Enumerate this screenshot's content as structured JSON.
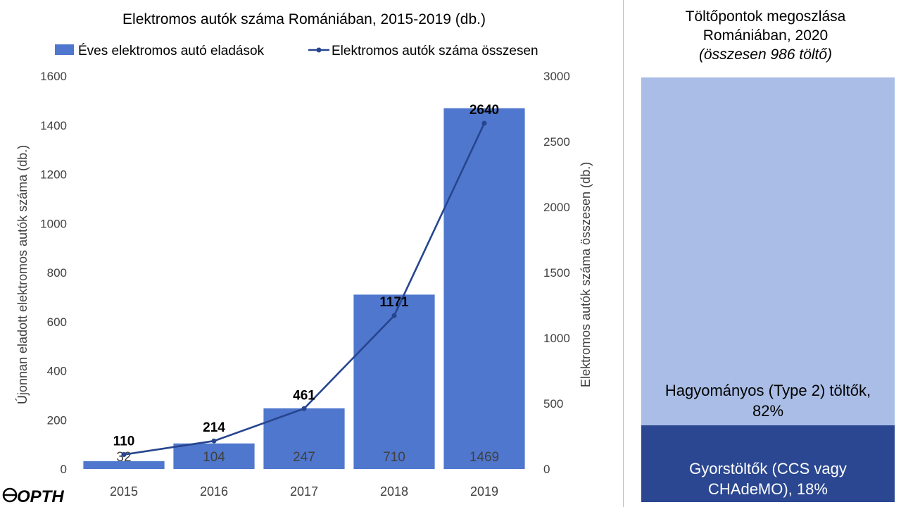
{
  "chart_data": [
    {
      "type": "bar",
      "title": "Elektromos autók száma Romániában, 2015-2019 (db.)",
      "categories": [
        "2015",
        "2016",
        "2017",
        "2018",
        "2019"
      ],
      "ylabel": "Újonnan eladott elektromos autók száma (db.)",
      "y2label": "Elektromos autók száma összesen (db.)",
      "ylim": [
        0,
        1600
      ],
      "y2lim": [
        0,
        3000
      ],
      "yticks": [
        0,
        200,
        400,
        600,
        800,
        1000,
        1200,
        1400,
        1600
      ],
      "y2ticks": [
        0,
        500,
        1000,
        1500,
        2000,
        2500,
        3000
      ],
      "grid": false,
      "legend_position": "top",
      "series": [
        {
          "name": "Éves elektromos autó eladások",
          "type": "bar",
          "axis": "left",
          "color": "#4f77cd",
          "values": [
            32,
            104,
            247,
            710,
            1469
          ]
        },
        {
          "name": "Elektromos autók száma összesen",
          "type": "line",
          "axis": "right",
          "color": "#27458f",
          "values": [
            110,
            214,
            461,
            1171,
            2640
          ]
        }
      ]
    },
    {
      "type": "bar",
      "stacked": true,
      "title_lines": [
        "Töltőpontok megoszlása",
        "Romániában, 2020"
      ],
      "subtitle": "(összesen 986 töltő)",
      "series": [
        {
          "name": "Hagyományos (Type 2) töltők",
          "value": 82,
          "color": "#a9bde6",
          "label_lines": [
            "Hagyományos (Type 2) töltők,",
            "82%"
          ]
        },
        {
          "name": "Gyorstöltők (CCS vagy CHAdeMO)",
          "value": 18,
          "color": "#2b4791",
          "label_lines": [
            "Gyorstöltők (CCS vagy",
            "CHAdeMO), 18%"
          ]
        }
      ]
    }
  ],
  "logo": {
    "text": "OPTH",
    "color": "#000000"
  }
}
